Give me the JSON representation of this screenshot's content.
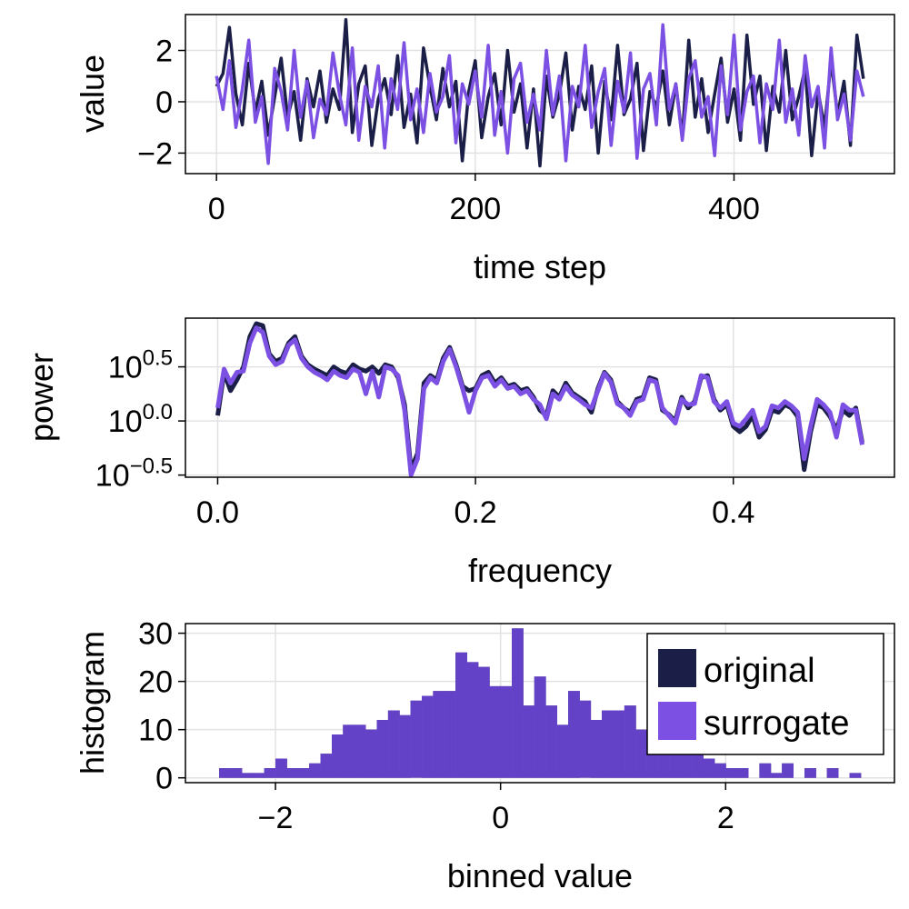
{
  "colors": {
    "original": "#1b1f48",
    "surrogate": "#7b50e3",
    "overlap": "#6a45d3",
    "grid": "#e2e2e2"
  },
  "legend": {
    "entries": [
      "original",
      "surrogate"
    ],
    "placement": "top-right of histogram panel"
  },
  "chart_data": [
    {
      "type": "line",
      "name": "time-series",
      "xlabel": "time step",
      "ylabel": "value",
      "xlim": [
        -24,
        524
      ],
      "ylim": [
        -2.8,
        3.4
      ],
      "xticks": [
        0,
        200,
        400
      ],
      "xtick_labels": [
        "0",
        "200",
        "400"
      ],
      "yticks": [
        -2,
        0,
        2
      ],
      "ytick_labels": [
        "−2",
        "0",
        "2"
      ],
      "grid": true,
      "series": [
        {
          "name": "original",
          "x": [
            0,
            5,
            10,
            15,
            20,
            25,
            30,
            35,
            40,
            45,
            50,
            55,
            60,
            65,
            70,
            75,
            80,
            85,
            90,
            95,
            100,
            105,
            110,
            115,
            120,
            125,
            130,
            135,
            140,
            145,
            150,
            155,
            160,
            165,
            170,
            175,
            180,
            185,
            190,
            195,
            200,
            205,
            210,
            215,
            220,
            225,
            230,
            235,
            240,
            245,
            250,
            255,
            260,
            265,
            270,
            275,
            280,
            285,
            290,
            295,
            300,
            305,
            310,
            315,
            320,
            325,
            330,
            335,
            340,
            345,
            350,
            355,
            360,
            365,
            370,
            375,
            380,
            385,
            390,
            395,
            400,
            405,
            410,
            415,
            420,
            425,
            430,
            435,
            440,
            445,
            450,
            455,
            460,
            465,
            470,
            475,
            480,
            485,
            490,
            495,
            500
          ],
          "values": [
            0.6,
            1.1,
            2.9,
            0.3,
            -0.9,
            1.5,
            -0.4,
            0.8,
            -1.3,
            0.2,
            1.7,
            -0.6,
            0.4,
            -1.5,
            0.9,
            -0.2,
            1.2,
            -0.8,
            0.5,
            -0.3,
            3.2,
            -1.2,
            0.7,
            1.4,
            -1.7,
            0.1,
            0.9,
            -0.5,
            1.8,
            -1.0,
            0.3,
            -1.6,
            2.1,
            0.6,
            -0.7,
            1.3,
            -0.2,
            0.8,
            -2.3,
            0.4,
            1.6,
            -1.4,
            0.2,
            1.1,
            -0.9,
            2.0,
            -0.4,
            0.7,
            -1.8,
            0.5,
            -2.5,
            1.0,
            -0.6,
            0.3,
            1.9,
            -1.1,
            0.6,
            -0.3,
            1.4,
            -2.0,
            0.8,
            -0.7,
            2.2,
            -0.5,
            0.1,
            1.5,
            -1.9,
            0.4,
            -0.2,
            1.2,
            -0.9,
            0.7,
            -1.4,
            2.4,
            -0.6,
            0.9,
            -1.2,
            0.3,
            1.7,
            -0.8,
            0.5,
            -1.5,
            2.6,
            -0.1,
            1.0,
            -1.9,
            0.6,
            -0.4,
            2.0,
            -0.7,
            0.2,
            1.3,
            -2.1,
            0.4,
            -1.0,
            1.6,
            -0.5,
            0.8,
            -1.7,
            2.6,
            0.9
          ]
        },
        {
          "name": "surrogate",
          "x": [
            0,
            5,
            10,
            15,
            20,
            25,
            30,
            35,
            40,
            45,
            50,
            55,
            60,
            65,
            70,
            75,
            80,
            85,
            90,
            95,
            100,
            105,
            110,
            115,
            120,
            125,
            130,
            135,
            140,
            145,
            150,
            155,
            160,
            165,
            170,
            175,
            180,
            185,
            190,
            195,
            200,
            205,
            210,
            215,
            220,
            225,
            230,
            235,
            240,
            245,
            250,
            255,
            260,
            265,
            270,
            275,
            280,
            285,
            290,
            295,
            300,
            305,
            310,
            315,
            320,
            325,
            330,
            335,
            340,
            345,
            350,
            355,
            360,
            365,
            370,
            375,
            380,
            385,
            390,
            395,
            400,
            405,
            410,
            415,
            420,
            425,
            430,
            435,
            440,
            445,
            450,
            455,
            460,
            465,
            470,
            475,
            480,
            485,
            490,
            495,
            500
          ],
          "values": [
            1.0,
            -0.3,
            1.6,
            -1.0,
            0.5,
            2.4,
            -0.8,
            0.2,
            -2.4,
            1.3,
            0.4,
            -1.1,
            2.0,
            -0.6,
            0.8,
            -1.4,
            0.1,
            -0.5,
            1.9,
            0.3,
            -0.9,
            2.1,
            -1.5,
            0.6,
            -0.2,
            1.4,
            -1.8,
            0.9,
            -0.3,
            2.3,
            -0.7,
            0.5,
            -1.2,
            1.1,
            -0.4,
            0.2,
            1.8,
            -1.6,
            0.7,
            -0.1,
            1.2,
            -0.6,
            2.2,
            -1.3,
            0.4,
            -2.0,
            0.9,
            1.5,
            -0.8,
            0.3,
            -1.1,
            2.0,
            -0.5,
            1.0,
            -2.3,
            0.6,
            -0.2,
            2.2,
            -1.0,
            0.4,
            1.3,
            -1.7,
            0.8,
            -0.4,
            1.9,
            -2.2,
            0.5,
            1.1,
            -0.9,
            3.0,
            -0.3,
            0.7,
            -1.5,
            0.9,
            1.6,
            -0.6,
            0.2,
            -2.1,
            1.4,
            -0.5,
            2.6,
            -1.1,
            0.4,
            1.0,
            -1.6,
            0.7,
            -0.3,
            2.4,
            -0.8,
            0.5,
            -1.3,
            1.8,
            -0.2,
            0.6,
            -1.8,
            2.1,
            -0.7,
            0.3,
            -1.5,
            1.2,
            0.2
          ]
        }
      ]
    },
    {
      "type": "line",
      "name": "power-spectrum",
      "xlabel": "frequency",
      "ylabel": "power",
      "yscale": "log10",
      "xlim": [
        -0.025,
        0.525
      ],
      "ylim": [
        -0.52,
        0.95
      ],
      "xticks": [
        0.0,
        0.2,
        0.4
      ],
      "xtick_labels": [
        "0.0",
        "0.2",
        "0.4"
      ],
      "yticks": [
        -0.5,
        0.0,
        0.5
      ],
      "ytick_labels": [
        {
          "base": "10",
          "exp": "−0.5"
        },
        {
          "base": "10",
          "exp": "0.0"
        },
        {
          "base": "10",
          "exp": "0.5"
        }
      ],
      "grid": true,
      "series": [
        {
          "name": "original",
          "x": [
            0.0,
            0.005,
            0.01,
            0.015,
            0.02,
            0.025,
            0.03,
            0.035,
            0.04,
            0.045,
            0.05,
            0.055,
            0.06,
            0.065,
            0.07,
            0.075,
            0.08,
            0.085,
            0.09,
            0.095,
            0.1,
            0.105,
            0.11,
            0.115,
            0.12,
            0.125,
            0.13,
            0.135,
            0.14,
            0.145,
            0.15,
            0.155,
            0.16,
            0.165,
            0.17,
            0.175,
            0.18,
            0.185,
            0.19,
            0.195,
            0.2,
            0.205,
            0.21,
            0.215,
            0.22,
            0.225,
            0.23,
            0.235,
            0.24,
            0.245,
            0.25,
            0.255,
            0.26,
            0.265,
            0.27,
            0.275,
            0.28,
            0.285,
            0.29,
            0.295,
            0.3,
            0.305,
            0.31,
            0.315,
            0.32,
            0.325,
            0.33,
            0.335,
            0.34,
            0.345,
            0.35,
            0.355,
            0.36,
            0.365,
            0.37,
            0.375,
            0.38,
            0.385,
            0.39,
            0.395,
            0.4,
            0.405,
            0.41,
            0.415,
            0.42,
            0.425,
            0.43,
            0.435,
            0.44,
            0.445,
            0.45,
            0.455,
            0.46,
            0.465,
            0.47,
            0.475,
            0.48,
            0.485,
            0.49,
            0.495,
            0.5
          ],
          "values": [
            0.05,
            0.45,
            0.28,
            0.38,
            0.5,
            0.78,
            0.9,
            0.88,
            0.62,
            0.55,
            0.58,
            0.72,
            0.78,
            0.6,
            0.52,
            0.48,
            0.45,
            0.42,
            0.5,
            0.46,
            0.44,
            0.52,
            0.48,
            0.46,
            0.5,
            0.44,
            0.52,
            0.5,
            0.4,
            0.15,
            -0.45,
            -0.3,
            0.35,
            0.42,
            0.38,
            0.58,
            0.68,
            0.52,
            0.32,
            0.28,
            0.3,
            0.42,
            0.45,
            0.35,
            0.4,
            0.32,
            0.34,
            0.28,
            0.3,
            0.22,
            0.1,
            0.05,
            0.28,
            0.22,
            0.35,
            0.26,
            0.22,
            0.18,
            0.08,
            0.3,
            0.45,
            0.38,
            0.18,
            0.12,
            0.08,
            0.2,
            0.22,
            0.4,
            0.38,
            0.1,
            0.06,
            0.0,
            0.22,
            0.12,
            0.18,
            0.4,
            0.42,
            0.2,
            0.1,
            0.15,
            -0.05,
            -0.1,
            -0.05,
            0.05,
            -0.15,
            -0.08,
            0.1,
            0.08,
            0.15,
            0.12,
            0.04,
            -0.45,
            -0.1,
            0.15,
            0.12,
            0.04,
            -0.08,
            0.1,
            0.05,
            0.12,
            -0.2
          ]
        },
        {
          "name": "surrogate",
          "x": [
            0.0,
            0.005,
            0.01,
            0.015,
            0.02,
            0.025,
            0.03,
            0.035,
            0.04,
            0.045,
            0.05,
            0.055,
            0.06,
            0.065,
            0.07,
            0.075,
            0.08,
            0.085,
            0.09,
            0.095,
            0.1,
            0.105,
            0.11,
            0.115,
            0.12,
            0.125,
            0.13,
            0.135,
            0.14,
            0.145,
            0.15,
            0.155,
            0.16,
            0.165,
            0.17,
            0.175,
            0.18,
            0.185,
            0.19,
            0.195,
            0.2,
            0.205,
            0.21,
            0.215,
            0.22,
            0.225,
            0.23,
            0.235,
            0.24,
            0.245,
            0.25,
            0.255,
            0.26,
            0.265,
            0.27,
            0.275,
            0.28,
            0.285,
            0.29,
            0.295,
            0.3,
            0.305,
            0.31,
            0.315,
            0.32,
            0.325,
            0.33,
            0.335,
            0.34,
            0.345,
            0.35,
            0.355,
            0.36,
            0.365,
            0.37,
            0.375,
            0.38,
            0.385,
            0.39,
            0.395,
            0.4,
            0.405,
            0.41,
            0.415,
            0.42,
            0.425,
            0.43,
            0.435,
            0.44,
            0.445,
            0.45,
            0.455,
            0.46,
            0.465,
            0.47,
            0.475,
            0.48,
            0.485,
            0.49,
            0.495,
            0.5
          ],
          "values": [
            0.12,
            0.48,
            0.35,
            0.45,
            0.46,
            0.72,
            0.86,
            0.82,
            0.6,
            0.52,
            0.55,
            0.7,
            0.75,
            0.58,
            0.5,
            0.45,
            0.42,
            0.38,
            0.46,
            0.42,
            0.4,
            0.48,
            0.45,
            0.25,
            0.46,
            0.22,
            0.5,
            0.48,
            0.42,
            0.1,
            -0.5,
            -0.35,
            0.3,
            0.4,
            0.35,
            0.55,
            0.66,
            0.5,
            0.3,
            0.08,
            0.28,
            0.4,
            0.42,
            0.32,
            0.38,
            0.3,
            0.32,
            0.25,
            0.28,
            0.2,
            0.15,
            0.02,
            0.25,
            0.2,
            0.32,
            0.24,
            0.2,
            0.15,
            0.12,
            0.28,
            0.44,
            0.36,
            0.16,
            0.12,
            0.05,
            0.18,
            0.2,
            0.38,
            0.36,
            0.12,
            0.05,
            -0.02,
            0.2,
            0.15,
            0.16,
            0.42,
            0.4,
            0.18,
            0.12,
            0.18,
            -0.02,
            -0.05,
            0.02,
            0.1,
            -0.1,
            -0.05,
            0.14,
            0.12,
            0.18,
            0.14,
            0.08,
            -0.35,
            -0.05,
            0.2,
            0.15,
            0.08,
            -0.15,
            0.15,
            0.1,
            0.1,
            -0.22
          ]
        }
      ]
    },
    {
      "type": "bar",
      "name": "histogram",
      "xlabel": "binned value",
      "ylabel": "histogram",
      "xlim": [
        -2.8,
        3.5
      ],
      "ylim": [
        -1,
        32
      ],
      "xticks": [
        -2,
        0,
        2
      ],
      "xtick_labels": [
        "−2",
        "0",
        "2"
      ],
      "yticks": [
        0,
        10,
        20,
        30
      ],
      "ytick_labels": [
        "0",
        "10",
        "20",
        "30"
      ],
      "grid": true,
      "bin_width": 0.1,
      "bin_starts": [
        -2.5,
        -2.4,
        -2.3,
        -2.2,
        -2.1,
        -2.0,
        -1.9,
        -1.8,
        -1.7,
        -1.6,
        -1.5,
        -1.4,
        -1.3,
        -1.2,
        -1.1,
        -1.0,
        -0.9,
        -0.8,
        -0.7,
        -0.6,
        -0.5,
        -0.4,
        -0.3,
        -0.2,
        -0.1,
        0.0,
        0.1,
        0.2,
        0.3,
        0.4,
        0.5,
        0.6,
        0.7,
        0.8,
        0.9,
        1.0,
        1.1,
        1.2,
        1.3,
        1.4,
        1.5,
        1.6,
        1.7,
        1.8,
        1.9,
        2.0,
        2.1,
        2.2,
        2.3,
        2.4,
        2.5,
        2.6,
        2.7,
        2.8,
        2.9,
        3.0,
        3.1
      ],
      "series": [
        {
          "name": "original",
          "values": [
            2,
            2,
            1,
            1,
            2,
            4,
            2,
            2,
            3,
            5,
            9,
            11,
            11,
            10,
            12,
            14,
            13,
            16,
            17,
            18,
            18,
            26,
            24,
            23,
            19,
            19,
            31,
            15,
            21,
            15,
            11,
            18,
            16,
            12,
            14,
            14,
            15,
            10,
            12,
            9,
            9,
            7,
            5,
            4,
            3,
            2,
            2,
            0,
            3,
            1,
            3,
            0,
            2,
            0,
            2,
            0,
            1
          ]
        },
        {
          "name": "surrogate",
          "values": [
            2,
            2,
            1,
            1,
            2,
            4,
            2,
            2,
            3,
            5,
            9,
            11,
            11,
            10,
            12,
            14,
            13,
            16,
            17,
            18,
            18,
            26,
            24,
            23,
            19,
            19,
            31,
            15,
            21,
            15,
            11,
            18,
            16,
            12,
            14,
            14,
            15,
            10,
            12,
            9,
            9,
            7,
            5,
            4,
            3,
            2,
            2,
            0,
            3,
            1,
            3,
            0,
            2,
            0,
            2,
            0,
            1
          ]
        }
      ]
    }
  ]
}
